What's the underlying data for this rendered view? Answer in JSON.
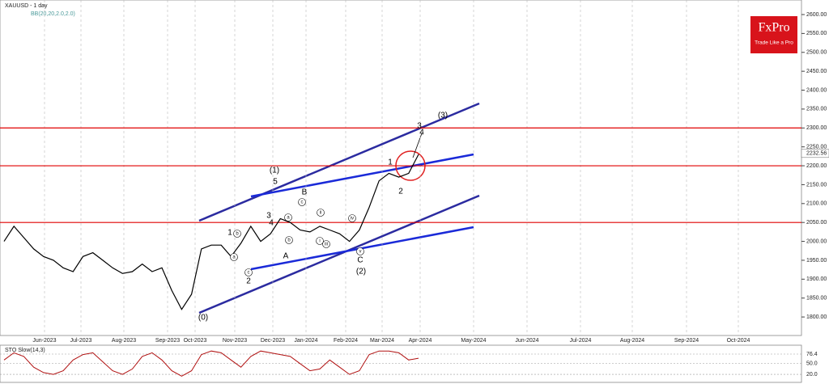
{
  "header": {
    "title": "XAUUSD - 1 day",
    "indicator": "BB(20,20,2.0,2.0)"
  },
  "logo": {
    "name": "FxPro",
    "tagline": "Trade Like a Pro"
  },
  "chart_data": {
    "type": "line",
    "x_labels": [
      "Jun-2023",
      "Jul-2023",
      "Aug-2023",
      "Sep-2023",
      "Oct-2023",
      "Nov-2023",
      "Dec-2023",
      "Jan-2024",
      "Feb-2024",
      "Mar-2024",
      "Apr-2024",
      "May-2024",
      "Jun-2024",
      "Jul-2024",
      "Aug-2024",
      "Sep-2024",
      "Oct-2024"
    ],
    "series": [
      {
        "name": "XAUUSD",
        "color": "#000000",
        "values": [
          2000,
          2040,
          2010,
          1980,
          1960,
          1950,
          1930,
          1920,
          1960,
          1970,
          1950,
          1930,
          1915,
          1920,
          1940,
          1920,
          1930,
          1870,
          1820,
          1860,
          1980,
          1990,
          1990,
          1960,
          1995,
          2040,
          2000,
          2020,
          2060,
          2050,
          2030,
          2025,
          2040,
          2030,
          2020,
          2000,
          2030,
          2090,
          2160,
          2180,
          2170,
          2180,
          2230
        ]
      }
    ],
    "ylim": [
      1751,
      2638.5
    ],
    "yticks": [
      {
        "value": 1800,
        "label": "1800.00"
      },
      {
        "value": 1850,
        "label": "1850.00"
      },
      {
        "value": 1900,
        "label": "1900.00"
      },
      {
        "value": 1950,
        "label": "1950.00"
      },
      {
        "value": 2000,
        "label": "2000.00"
      },
      {
        "value": 2050,
        "label": "2050.00"
      },
      {
        "value": 2100,
        "label": "2100.00"
      },
      {
        "value": 2150,
        "label": "2150.00"
      },
      {
        "value": 2200,
        "label": "2200.00"
      },
      {
        "value": 2250,
        "label": "2250.00"
      },
      {
        "value": 2300,
        "label": "2300.00"
      },
      {
        "value": 2350,
        "label": "2350.00"
      },
      {
        "value": 2400,
        "label": "2400.00"
      },
      {
        "value": 2450,
        "label": "2450.00"
      },
      {
        "value": 2500,
        "label": "2500.00"
      },
      {
        "value": 2550,
        "label": "2550.00"
      },
      {
        "value": 2600,
        "label": "2600.00"
      }
    ],
    "last_price": {
      "value": 2232.56,
      "label": "2232.56"
    },
    "levels": [
      2300,
      2200,
      2050
    ],
    "level_color": "#e00000",
    "annotations": [
      "(1)",
      "5",
      "B",
      "3",
      "4",
      "1",
      "A",
      "2",
      "(0)",
      "(2)",
      "C",
      "(3)",
      "1",
      "2",
      "3",
      "4"
    ],
    "circled": [
      "a",
      "b",
      "c",
      "a",
      "b",
      "c",
      "i",
      "ii",
      "iii",
      "iv",
      "v"
    ],
    "oscillator": {
      "title": "STO Slow(14,3)",
      "color": "#b01010",
      "values": [
        60,
        80,
        70,
        40,
        25,
        20,
        30,
        60,
        75,
        80,
        55,
        30,
        20,
        35,
        70,
        80,
        60,
        30,
        15,
        30,
        75,
        85,
        80,
        60,
        40,
        70,
        85,
        80,
        75,
        70,
        50,
        30,
        35,
        60,
        40,
        20,
        30,
        75,
        85,
        85,
        80,
        60,
        65
      ],
      "ylim": [
        0,
        100
      ],
      "yticks": [
        {
          "value": 76.4,
          "label": "76.4"
        },
        {
          "value": 50,
          "label": "50.0"
        },
        {
          "value": 20,
          "label": "20.0"
        }
      ]
    }
  }
}
